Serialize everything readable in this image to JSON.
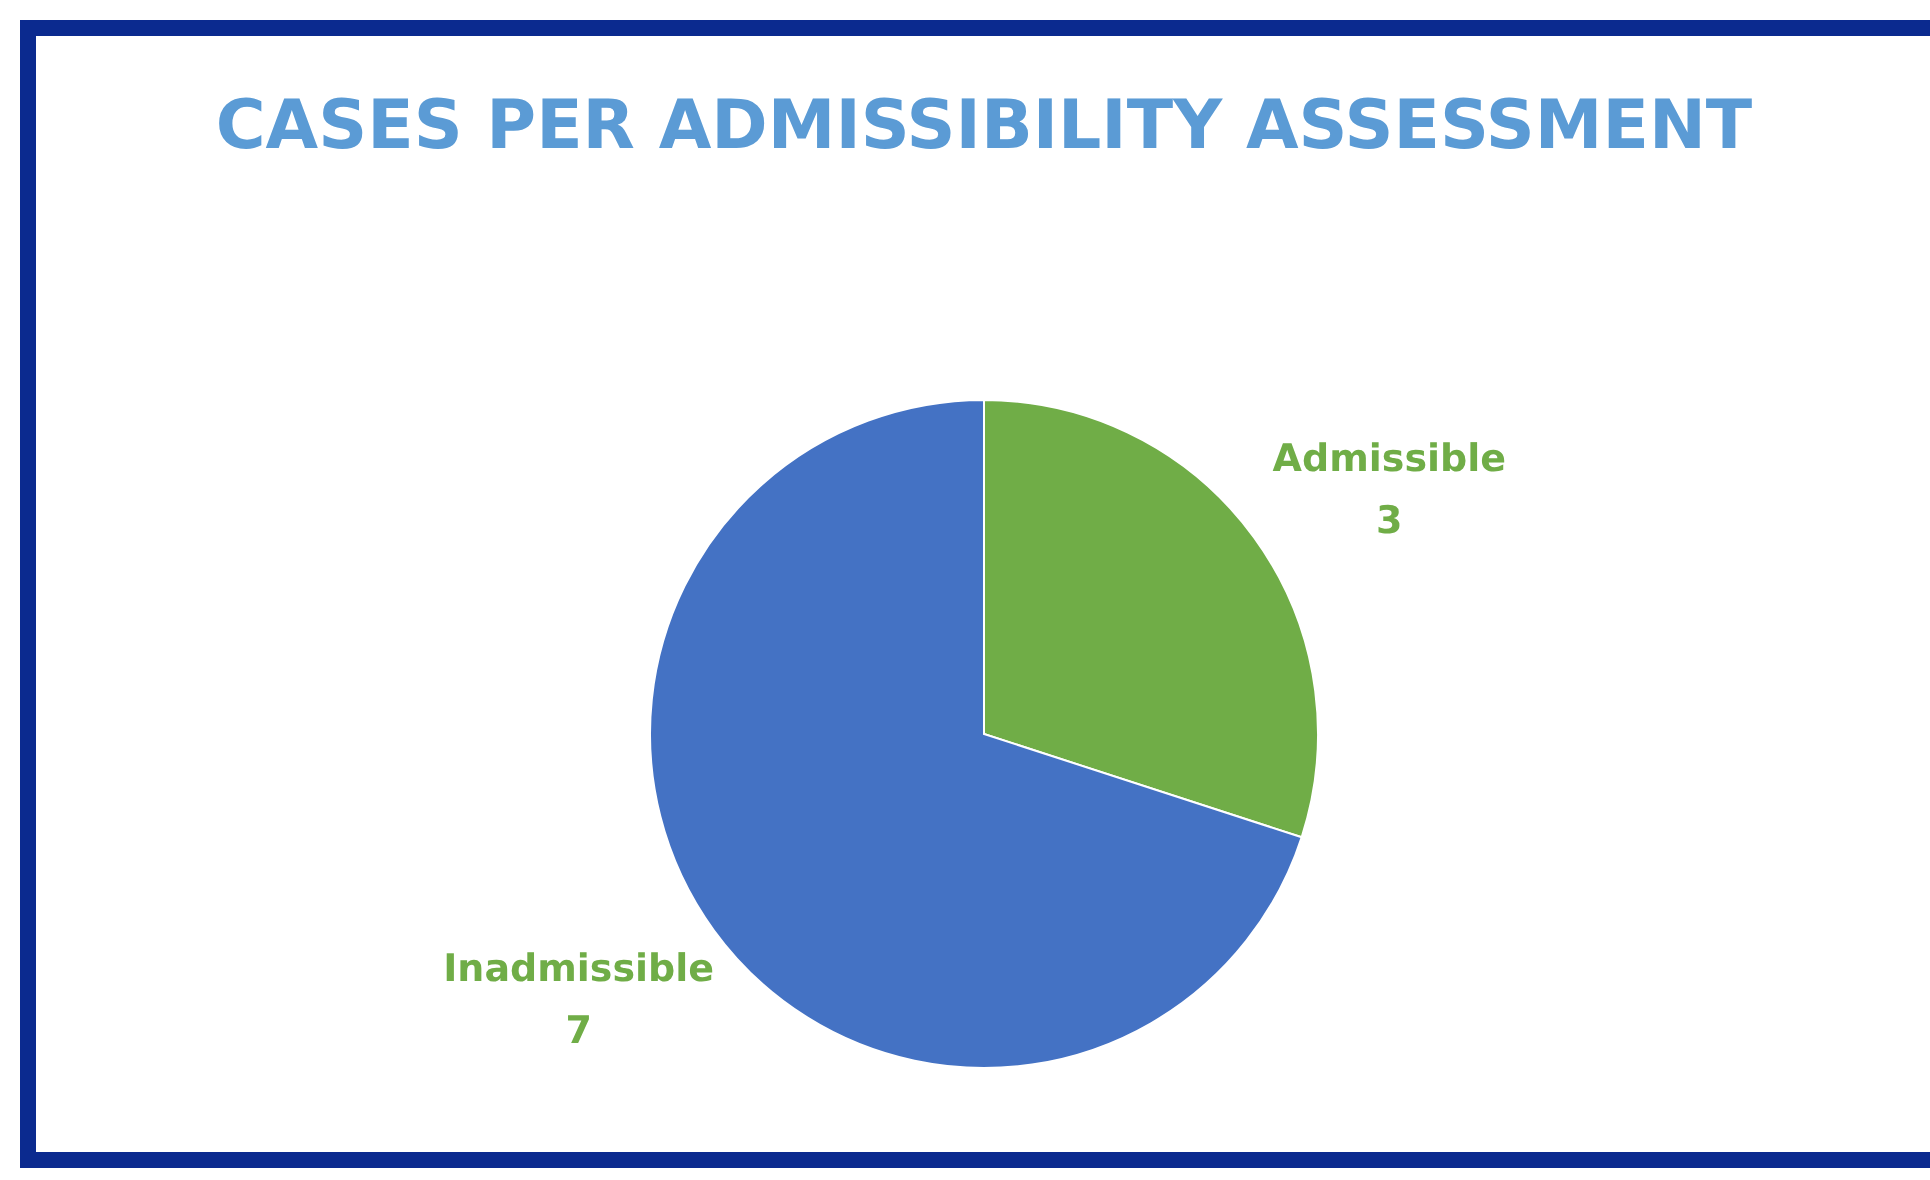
{
  "chart_data": {
    "type": "pie",
    "title": "CASES PER ADMISSIBILITY ASSESSMENT",
    "categories": [
      "Admissible",
      "Inadmissible"
    ],
    "values": [
      3,
      7
    ],
    "colors": [
      "#70ad47",
      "#4472c4"
    ],
    "data_labels": true,
    "legend": false
  }
}
